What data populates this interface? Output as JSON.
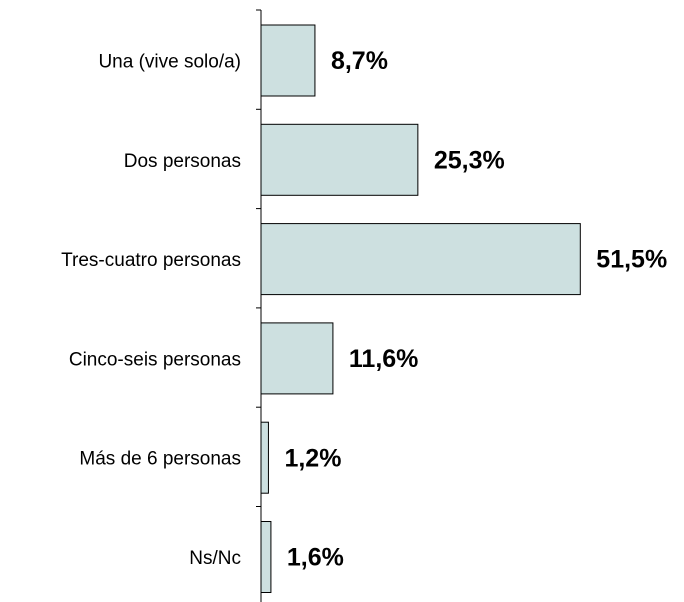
{
  "chart_data": {
    "type": "bar",
    "orientation": "horizontal",
    "categories": [
      "Una (vive solo/a)",
      "Dos personas",
      "Tres-cuatro personas",
      "Cinco-seis personas",
      "Más de 6 personas",
      "Ns/Nc"
    ],
    "values": [
      8.7,
      25.3,
      51.5,
      11.6,
      1.2,
      1.6
    ],
    "value_labels": [
      "8,7%",
      "25,3%",
      "51,5%",
      "11,6%",
      "1,2%",
      "1,6%"
    ],
    "color": "#cde0e0"
  }
}
